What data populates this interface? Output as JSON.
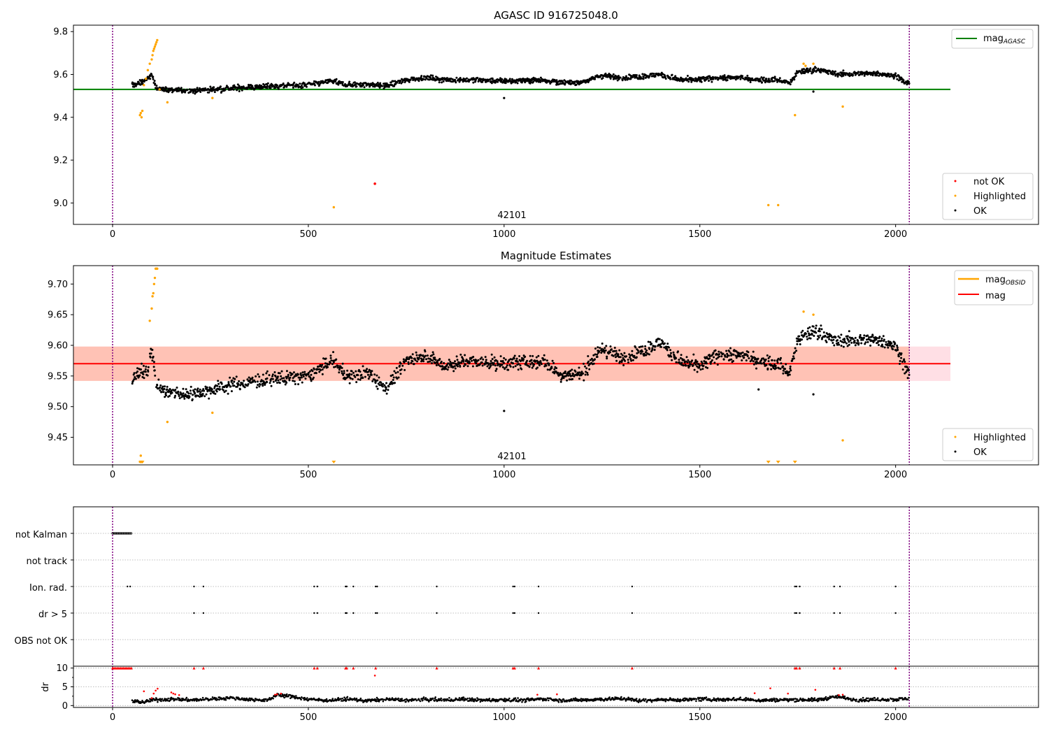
{
  "figure_title": "AGASC ID 916725048.0",
  "colors": {
    "ok": "#000000",
    "highlighted": "#ffa500",
    "not_ok": "#ff0000",
    "agasc_line": "#008000",
    "mag_line": "#ff0000",
    "mag_obsid_line": "#ffa500",
    "band_inner": "#ffa07a",
    "band_outer": "#ffc0cb",
    "vline": "#800080",
    "grid": "#aaaaaa"
  },
  "chart_data": [
    {
      "type": "scatter",
      "title": "AGASC ID 916725048.0",
      "annotation": "42101",
      "xlim": [
        -100,
        2365
      ],
      "ylim": [
        8.9,
        9.83
      ],
      "xticks": [
        0,
        500,
        1000,
        1500,
        2000
      ],
      "xtick_labels": [
        "0",
        "500",
        "1000",
        "1500",
        "2000"
      ],
      "yticks": [
        9.0,
        9.2,
        9.4,
        9.6,
        9.8
      ],
      "ytick_labels": [
        "9.0",
        "9.2",
        "9.4",
        "9.6",
        "9.8"
      ],
      "vlines": [
        0,
        2035
      ],
      "hlines": [
        {
          "name": "mag_AGASC",
          "y": 9.53,
          "x_range": [
            -100,
            2140
          ]
        }
      ],
      "legend_upper": {
        "position": "top-right",
        "entries": [
          {
            "main": "mag",
            "sub": "AGASC"
          }
        ]
      },
      "legend_lower": {
        "position": "bottom-right",
        "entries": [
          "not OK",
          "Highlighted",
          "OK"
        ]
      },
      "ok_trend": {
        "x": [
          50,
          70,
          90,
          100,
          110,
          130,
          200,
          300,
          400,
          500,
          560,
          600,
          650,
          700,
          750,
          800,
          850,
          900,
          1000,
          1100,
          1150,
          1200,
          1250,
          1300,
          1350,
          1400,
          1450,
          1500,
          1550,
          1600,
          1650,
          1700,
          1730,
          1750,
          1800,
          1850,
          1900,
          1950,
          2000,
          2030
        ],
        "y": [
          9.55,
          9.56,
          9.58,
          9.6,
          9.54,
          9.53,
          9.525,
          9.535,
          9.545,
          9.55,
          9.57,
          9.55,
          9.555,
          9.545,
          9.575,
          9.585,
          9.575,
          9.575,
          9.57,
          9.575,
          9.56,
          9.565,
          9.595,
          9.585,
          9.59,
          9.6,
          9.575,
          9.575,
          9.585,
          9.585,
          9.575,
          9.575,
          9.56,
          9.61,
          9.625,
          9.6,
          9.605,
          9.605,
          9.595,
          9.555
        ]
      },
      "ok_outliers": {
        "x": [
          1000,
          1790
        ],
        "y": [
          9.49,
          9.52
        ]
      },
      "highlighted": {
        "x": [
          70,
          72,
          74,
          76,
          80,
          85,
          90,
          95,
          100,
          102,
          104,
          106,
          108,
          110,
          112,
          114,
          120,
          140,
          255,
          565,
          1675,
          1700,
          1743,
          1765,
          1770,
          1790,
          1865
        ],
        "y": [
          9.41,
          9.42,
          9.4,
          9.43,
          9.55,
          9.58,
          9.62,
          9.65,
          9.67,
          9.69,
          9.71,
          9.72,
          9.73,
          9.74,
          9.75,
          9.76,
          9.53,
          9.47,
          9.49,
          8.98,
          8.99,
          8.99,
          9.41,
          9.65,
          9.64,
          9.65,
          9.45
        ]
      },
      "not_ok": {
        "x": [
          670
        ],
        "y": [
          9.09
        ]
      }
    },
    {
      "type": "scatter",
      "title": "Magnitude Estimates",
      "annotation": "42101",
      "xlim": [
        -100,
        2365
      ],
      "ylim": [
        9.405,
        9.73
      ],
      "xticks": [
        0,
        500,
        1000,
        1500,
        2000
      ],
      "xtick_labels": [
        "0",
        "500",
        "1000",
        "1500",
        "2000"
      ],
      "yticks": [
        9.45,
        9.5,
        9.55,
        9.6,
        9.65,
        9.7
      ],
      "ytick_labels": [
        "9.45",
        "9.50",
        "9.55",
        "9.60",
        "9.65",
        "9.70"
      ],
      "vlines": [
        0,
        2035
      ],
      "mag_line": {
        "y": 9.57,
        "x_range": [
          -100,
          2140
        ]
      },
      "band_outer": {
        "y_range": [
          9.542,
          9.598
        ],
        "x_range": [
          -100,
          2140
        ]
      },
      "band_inner": {
        "y_range": [
          9.542,
          9.598
        ],
        "x_range": [
          -100,
          2035
        ]
      },
      "legend_upper": {
        "position": "top-right",
        "entries": [
          {
            "main": "mag",
            "sub": "OBSID"
          },
          {
            "main": "mag",
            "sub": ""
          }
        ]
      },
      "legend_lower": {
        "position": "bottom-right",
        "entries": [
          "Highlighted",
          "OK"
        ]
      },
      "ok_trend": {
        "x": [
          50,
          70,
          90,
          100,
          110,
          130,
          200,
          300,
          400,
          500,
          560,
          600,
          650,
          700,
          750,
          800,
          850,
          900,
          1000,
          1100,
          1150,
          1200,
          1250,
          1300,
          1350,
          1400,
          1450,
          1500,
          1550,
          1600,
          1650,
          1700,
          1730,
          1750,
          1800,
          1850,
          1900,
          1950,
          2000,
          2030
        ],
        "y": [
          9.545,
          9.555,
          9.56,
          9.6,
          9.54,
          9.525,
          9.52,
          9.535,
          9.545,
          9.55,
          9.575,
          9.55,
          9.555,
          9.53,
          9.575,
          9.585,
          9.565,
          9.575,
          9.57,
          9.575,
          9.55,
          9.555,
          9.595,
          9.58,
          9.59,
          9.605,
          9.575,
          9.565,
          9.585,
          9.585,
          9.575,
          9.57,
          9.555,
          9.61,
          9.625,
          9.605,
          9.61,
          9.61,
          9.6,
          9.555
        ]
      },
      "ok_outliers": {
        "x": [
          1000,
          1650,
          1790
        ],
        "y": [
          9.493,
          9.528,
          9.52
        ]
      },
      "highlighted": {
        "x": [
          70,
          72,
          74,
          76,
          95,
          100,
          102,
          104,
          106,
          108,
          110,
          112,
          114,
          140,
          255,
          1765,
          1790,
          1865
        ],
        "y": [
          9.41,
          9.42,
          9.41,
          9.41,
          9.64,
          9.66,
          9.68,
          9.685,
          9.7,
          9.71,
          9.725,
          9.725,
          9.725,
          9.475,
          9.49,
          9.655,
          9.65,
          9.445
        ]
      },
      "offscale_markers": {
        "x": [
          72,
          76,
          565,
          1675,
          1700,
          1743
        ]
      }
    },
    {
      "type": "scatter",
      "title": "",
      "xlim": [
        -100,
        2365
      ],
      "vlines": [
        0,
        2035
      ],
      "category_labels": [
        "not Kalman",
        "not track",
        "Ion. rad.",
        "dr > 5",
        "OBS not OK"
      ],
      "flags": {
        "not_kalman": {
          "x_range": [
            0,
            48
          ]
        },
        "ion_rad": {
          "x": [
            38,
            45,
            208,
            232,
            515,
            523,
            595,
            598,
            615,
            672,
            676,
            828,
            1023,
            1027,
            1088,
            1327,
            1743,
            1747,
            1755,
            1843,
            1858,
            2000
          ]
        },
        "dr_gt_5": {
          "x": [
            208,
            232,
            515,
            523,
            595,
            598,
            615,
            672,
            676,
            828,
            1023,
            1027,
            1088,
            1327,
            1743,
            1747,
            1755,
            1843,
            1858,
            2000
          ]
        }
      },
      "dr_axis": {
        "ylabel": "dr",
        "ylim": [
          -0.5,
          10.5
        ],
        "yticks": [
          0,
          5,
          10
        ],
        "ytick_labels": [
          "0",
          "5",
          "10"
        ]
      },
      "dr_trend": {
        "x": [
          50,
          80,
          100,
          150,
          200,
          250,
          300,
          350,
          400,
          420,
          450,
          500,
          550,
          600,
          650,
          700,
          750,
          800,
          850,
          900,
          950,
          1000,
          1050,
          1100,
          1150,
          1200,
          1250,
          1300,
          1350,
          1400,
          1450,
          1500,
          1550,
          1600,
          1650,
          1700,
          1750,
          1800,
          1850,
          1900,
          1950,
          2000,
          2035
        ],
        "y": [
          1.2,
          0.9,
          1.5,
          1.7,
          1.5,
          1.7,
          2.1,
          1.6,
          1.5,
          2.9,
          2.5,
          1.7,
          1.4,
          1.7,
          1.3,
          1.7,
          1.4,
          1.6,
          1.5,
          1.7,
          1.4,
          1.6,
          1.4,
          1.8,
          1.4,
          1.5,
          1.7,
          1.9,
          1.3,
          1.6,
          1.5,
          1.7,
          1.6,
          1.7,
          1.4,
          1.5,
          1.6,
          1.5,
          2.4,
          1.5,
          1.6,
          1.6,
          1.9
        ]
      },
      "dr_red_dots": {
        "x": [
          80,
          100,
          105,
          110,
          115,
          150,
          155,
          160,
          170,
          415,
          420,
          430,
          670,
          1085,
          1135,
          1640,
          1680,
          1725,
          1795,
          1855,
          1865
        ],
        "y": [
          3.8,
          2.0,
          3.2,
          4.0,
          4.5,
          3.5,
          3.2,
          3.0,
          2.8,
          2.9,
          3.0,
          3.2,
          8.0,
          2.9,
          3.0,
          3.3,
          4.6,
          3.2,
          4.2,
          2.8,
          2.9
        ]
      },
      "dr_top_markers": {
        "x": [
          0,
          4,
          8,
          12,
          16,
          20,
          24,
          28,
          32,
          36,
          40,
          44,
          48,
          208,
          232,
          515,
          523,
          595,
          598,
          615,
          672,
          828,
          1023,
          1027,
          1088,
          1327,
          1743,
          1747,
          1755,
          1843,
          1858,
          2000
        ]
      }
    }
  ]
}
